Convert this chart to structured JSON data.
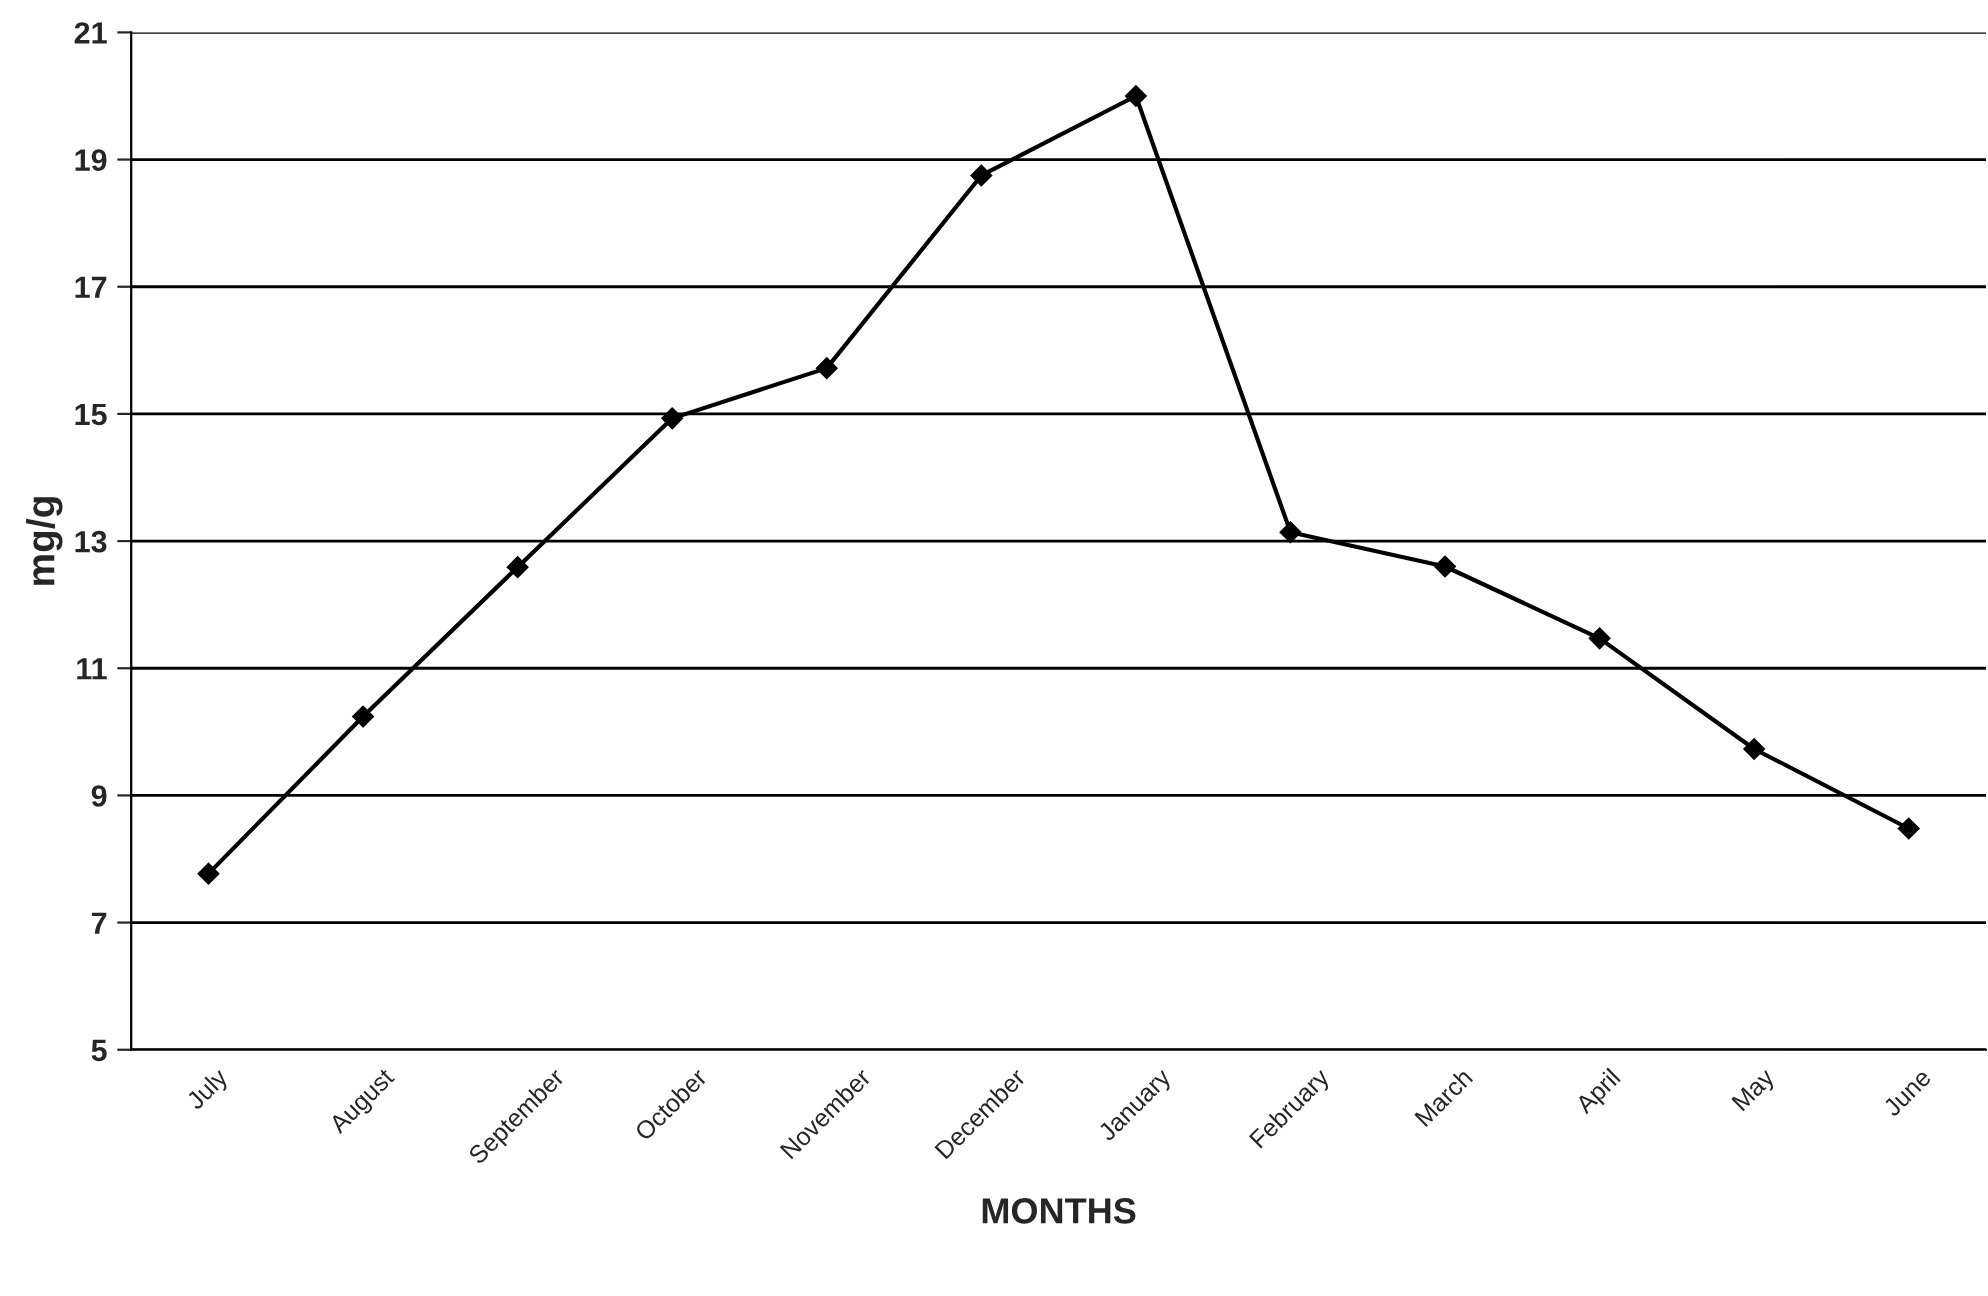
{
  "chart_data": {
    "type": "line",
    "xlabel": "MONTHS",
    "ylabel": "mg/g",
    "categories": [
      "July",
      "August",
      "September",
      "October",
      "November",
      "December",
      "January",
      "February",
      "March",
      "April",
      "May",
      "June"
    ],
    "series": [
      {
        "color": "#000000",
        "values": [
          7.77,
          10.24,
          12.59,
          14.93,
          15.72,
          18.75,
          20.0,
          13.14,
          12.6,
          11.47,
          9.73,
          8.48
        ]
      }
    ],
    "ylim": [
      5,
      21
    ],
    "yticks": [
      5,
      7,
      9,
      11,
      13,
      15,
      17,
      19,
      21
    ],
    "grid": "y",
    "marker": "diamond",
    "line_style": "solid",
    "legend": false
  }
}
